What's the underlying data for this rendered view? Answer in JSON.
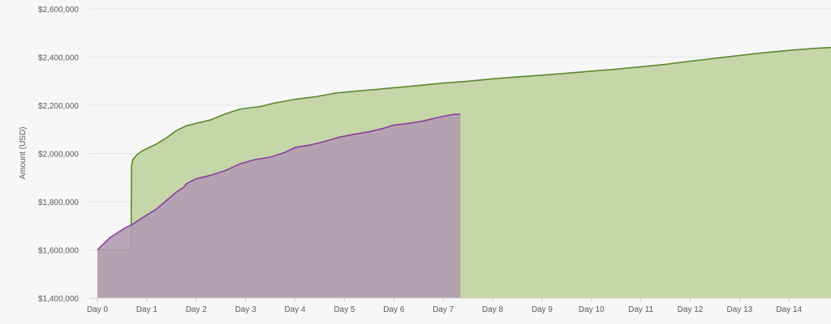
{
  "chart_data": {
    "type": "area",
    "title": "",
    "xlabel": "",
    "ylabel": "Amount (USD)",
    "ylim": [
      1400000,
      2600000
    ],
    "xlim": [
      0,
      14.85
    ],
    "grid": true,
    "y_ticks": [
      {
        "value": 1400000,
        "label": "$1,400,000"
      },
      {
        "value": 1600000,
        "label": "$1,600,000"
      },
      {
        "value": 1800000,
        "label": "$1,800,000"
      },
      {
        "value": 2000000,
        "label": "$2,000,000"
      },
      {
        "value": 2200000,
        "label": "$2,200,000"
      },
      {
        "value": 2400000,
        "label": "$2,400,000"
      },
      {
        "value": 2600000,
        "label": "$2,600,000"
      }
    ],
    "x_ticks": [
      {
        "value": 0,
        "label": "Day 0"
      },
      {
        "value": 1,
        "label": "Day 1"
      },
      {
        "value": 2,
        "label": "Day 2"
      },
      {
        "value": 3,
        "label": "Day 3"
      },
      {
        "value": 4,
        "label": "Day 4"
      },
      {
        "value": 5,
        "label": "Day 5"
      },
      {
        "value": 6,
        "label": "Day 6"
      },
      {
        "value": 7,
        "label": "Day 7"
      },
      {
        "value": 8,
        "label": "Day 8"
      },
      {
        "value": 9,
        "label": "Day 9"
      },
      {
        "value": 10,
        "label": "Day 10"
      },
      {
        "value": 11,
        "label": "Day 11"
      },
      {
        "value": 12,
        "label": "Day 12"
      },
      {
        "value": 13,
        "label": "Day 13"
      },
      {
        "value": 14,
        "label": "Day 14"
      }
    ],
    "series": [
      {
        "color_line": "#5a8a2e",
        "color_fill": "#c5d6a8",
        "points": [
          [
            0,
            1600000
          ],
          [
            0.68,
            1600000
          ],
          [
            0.69,
            1950000
          ],
          [
            0.72,
            1975000
          ],
          [
            0.8,
            1995000
          ],
          [
            0.9,
            2010000
          ],
          [
            1.0,
            2020000
          ],
          [
            1.2,
            2040000
          ],
          [
            1.4,
            2065000
          ],
          [
            1.6,
            2095000
          ],
          [
            1.8,
            2115000
          ],
          [
            2.0,
            2125000
          ],
          [
            2.3,
            2140000
          ],
          [
            2.6,
            2165000
          ],
          [
            2.9,
            2185000
          ],
          [
            3.3,
            2195000
          ],
          [
            3.6,
            2210000
          ],
          [
            4.0,
            2225000
          ],
          [
            4.4,
            2235000
          ],
          [
            4.8,
            2250000
          ],
          [
            5.2,
            2258000
          ],
          [
            5.6,
            2265000
          ],
          [
            6.0,
            2273000
          ],
          [
            6.5,
            2282000
          ],
          [
            7.0,
            2292000
          ],
          [
            7.5,
            2300000
          ],
          [
            8.0,
            2310000
          ],
          [
            8.5,
            2318000
          ],
          [
            9.0,
            2325000
          ],
          [
            9.5,
            2333000
          ],
          [
            10.0,
            2342000
          ],
          [
            10.5,
            2350000
          ],
          [
            11.0,
            2360000
          ],
          [
            11.5,
            2370000
          ],
          [
            12.0,
            2383000
          ],
          [
            12.5,
            2395000
          ],
          [
            13.0,
            2407000
          ],
          [
            13.5,
            2418000
          ],
          [
            14.0,
            2428000
          ],
          [
            14.5,
            2436000
          ],
          [
            14.85,
            2440000
          ]
        ]
      },
      {
        "color_line": "#8a3f9e",
        "color_fill": "#b39cb0",
        "fill_opacity": 0.9,
        "points": [
          [
            0,
            1600000
          ],
          [
            0.1,
            1620000
          ],
          [
            0.25,
            1650000
          ],
          [
            0.4,
            1670000
          ],
          [
            0.55,
            1690000
          ],
          [
            0.7,
            1705000
          ],
          [
            0.85,
            1725000
          ],
          [
            1.0,
            1745000
          ],
          [
            1.2,
            1770000
          ],
          [
            1.4,
            1805000
          ],
          [
            1.6,
            1840000
          ],
          [
            1.75,
            1860000
          ],
          [
            1.8,
            1875000
          ],
          [
            2.0,
            1895000
          ],
          [
            2.3,
            1910000
          ],
          [
            2.6,
            1930000
          ],
          [
            2.9,
            1958000
          ],
          [
            3.2,
            1975000
          ],
          [
            3.5,
            1985000
          ],
          [
            3.8,
            2005000
          ],
          [
            4.0,
            2025000
          ],
          [
            4.3,
            2035000
          ],
          [
            4.6,
            2050000
          ],
          [
            4.9,
            2068000
          ],
          [
            5.2,
            2080000
          ],
          [
            5.5,
            2090000
          ],
          [
            5.8,
            2105000
          ],
          [
            6.0,
            2118000
          ],
          [
            6.3,
            2125000
          ],
          [
            6.6,
            2135000
          ],
          [
            6.9,
            2150000
          ],
          [
            7.2,
            2162000
          ],
          [
            7.35,
            2163000
          ]
        ]
      }
    ]
  }
}
